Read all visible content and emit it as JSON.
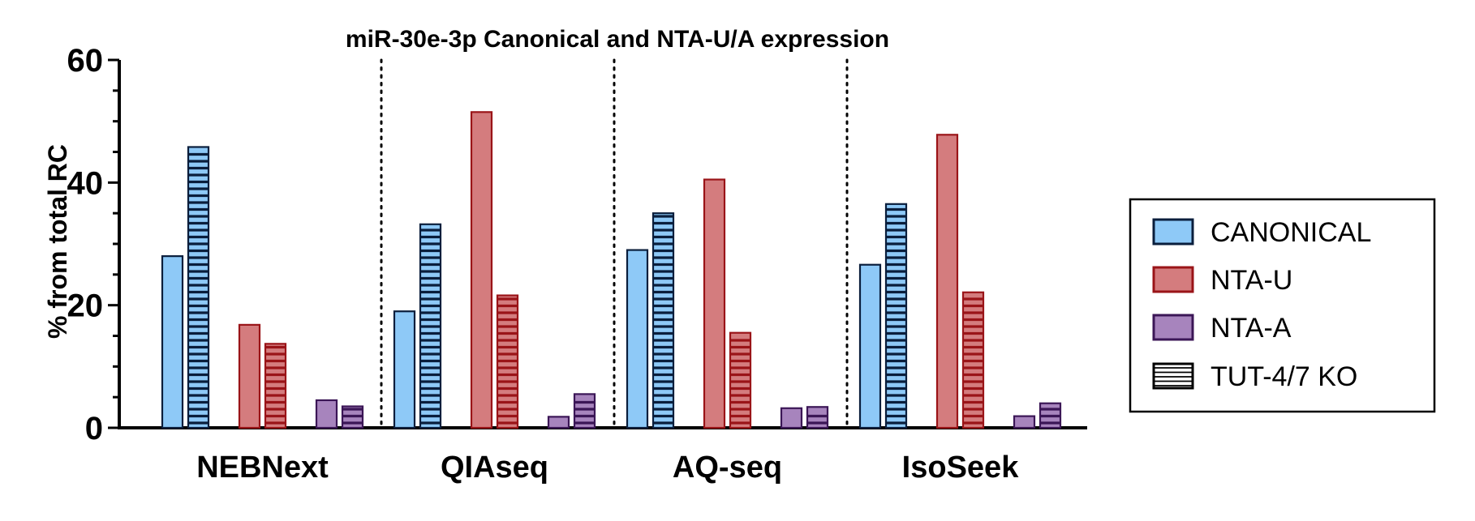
{
  "chart_data": {
    "type": "bar",
    "title": "miR-30e-3p Canonical and NTA-U/A expression",
    "xlabel": "",
    "ylabel": "% from total RC",
    "ylim": [
      0,
      60
    ],
    "yticks": [
      0,
      20,
      40,
      60
    ],
    "grid": false,
    "legend_position": "right",
    "categories": [
      "NEBNext",
      "QIAseq",
      "AQ-seq",
      "IsoSeek"
    ],
    "series": [
      {
        "name": "CANONICAL",
        "color": "#8ec9f7",
        "edge": "#0a1e3c",
        "pattern": "solid",
        "values": [
          28,
          19,
          29,
          26.6
        ]
      },
      {
        "name": "CANONICAL TUT-4/7 KO",
        "color": "#8ec9f7",
        "edge": "#0a1e3c",
        "pattern": "striped",
        "values": [
          45.8,
          33.2,
          35,
          36.5
        ]
      },
      {
        "name": "NTA-U",
        "color": "#d47c7e",
        "edge": "#9a1418",
        "pattern": "solid",
        "values": [
          16.8,
          51.5,
          40.5,
          47.8
        ]
      },
      {
        "name": "NTA-U TUT-4/7 KO",
        "color": "#d47c7e",
        "edge": "#9a1418",
        "pattern": "striped",
        "values": [
          13.7,
          21.6,
          15.5,
          22.1
        ]
      },
      {
        "name": "NTA-A",
        "color": "#a784bd",
        "edge": "#3b1656",
        "pattern": "solid",
        "values": [
          4.5,
          1.8,
          3.2,
          1.9
        ]
      },
      {
        "name": "NTA-A TUT-4/7 KO",
        "color": "#a784bd",
        "edge": "#3b1656",
        "pattern": "striped",
        "values": [
          3.5,
          5.5,
          3.4,
          4
        ]
      }
    ],
    "legend": [
      {
        "label": "CANONICAL",
        "color": "#8ec9f7",
        "edge": "#0a1e3c",
        "pattern": "solid"
      },
      {
        "label": "NTA-U",
        "color": "#d47c7e",
        "edge": "#9a1418",
        "pattern": "solid"
      },
      {
        "label": "NTA-A",
        "color": "#a784bd",
        "edge": "#3b1656",
        "pattern": "solid"
      },
      {
        "label": "TUT-4/7 KO",
        "color": "#ffffff",
        "edge": "#000000",
        "pattern": "striped"
      }
    ]
  }
}
